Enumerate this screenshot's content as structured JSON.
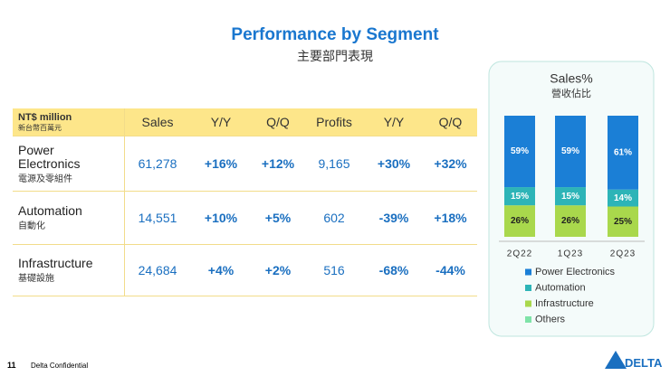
{
  "header": {
    "title": "Performance by Segment",
    "subtitle": "主要部門表現"
  },
  "table": {
    "unit": [
      "NT$ million",
      "新台幣百萬元"
    ],
    "columns": [
      "Sales",
      "Y/Y",
      "Q/Q",
      "Profits",
      "Y/Y",
      "Q/Q"
    ],
    "rows": [
      {
        "name": "Power Electronics",
        "name_zh": "電源及零組件",
        "cells": [
          "61,278",
          "+16%",
          "+12%",
          "9,165",
          "+30%",
          "+32%"
        ]
      },
      {
        "name": "Automation",
        "name_zh": "自動化",
        "cells": [
          "14,551",
          "+10%",
          "+5%",
          "602",
          "-39%",
          "+18%"
        ]
      },
      {
        "name": "Infrastructure",
        "name_zh": "基礎設施",
        "cells": [
          "24,684",
          "+4%",
          "+2%",
          "516",
          "-68%",
          "-44%"
        ]
      }
    ]
  },
  "chart_data": {
    "type": "stacked_bar",
    "title": "Sales%",
    "subtitle": "營收佔比",
    "categories": [
      "2Q22",
      "1Q23",
      "2Q23"
    ],
    "series": [
      {
        "name": "Power Electronics",
        "color": "#1b7fd6",
        "values": [
          59,
          59,
          61
        ],
        "value_labels": [
          "59%",
          "59%",
          "61%"
        ]
      },
      {
        "name": "Automation",
        "color": "#2db4b7",
        "values": [
          15,
          15,
          14
        ],
        "value_labels": [
          "15%",
          "15%",
          "14%"
        ]
      },
      {
        "name": "Infrastructure",
        "color": "#a9d84c",
        "values": [
          26,
          26,
          25
        ],
        "value_labels": [
          "26%",
          "26%",
          "25%"
        ]
      },
      {
        "name": "Others",
        "color": "#7fe3a8",
        "values": [
          0,
          0,
          0
        ]
      }
    ],
    "legend": "bottom"
  },
  "footer": {
    "page": "11",
    "note": "Delta Confidential",
    "logo": "DELTA"
  }
}
